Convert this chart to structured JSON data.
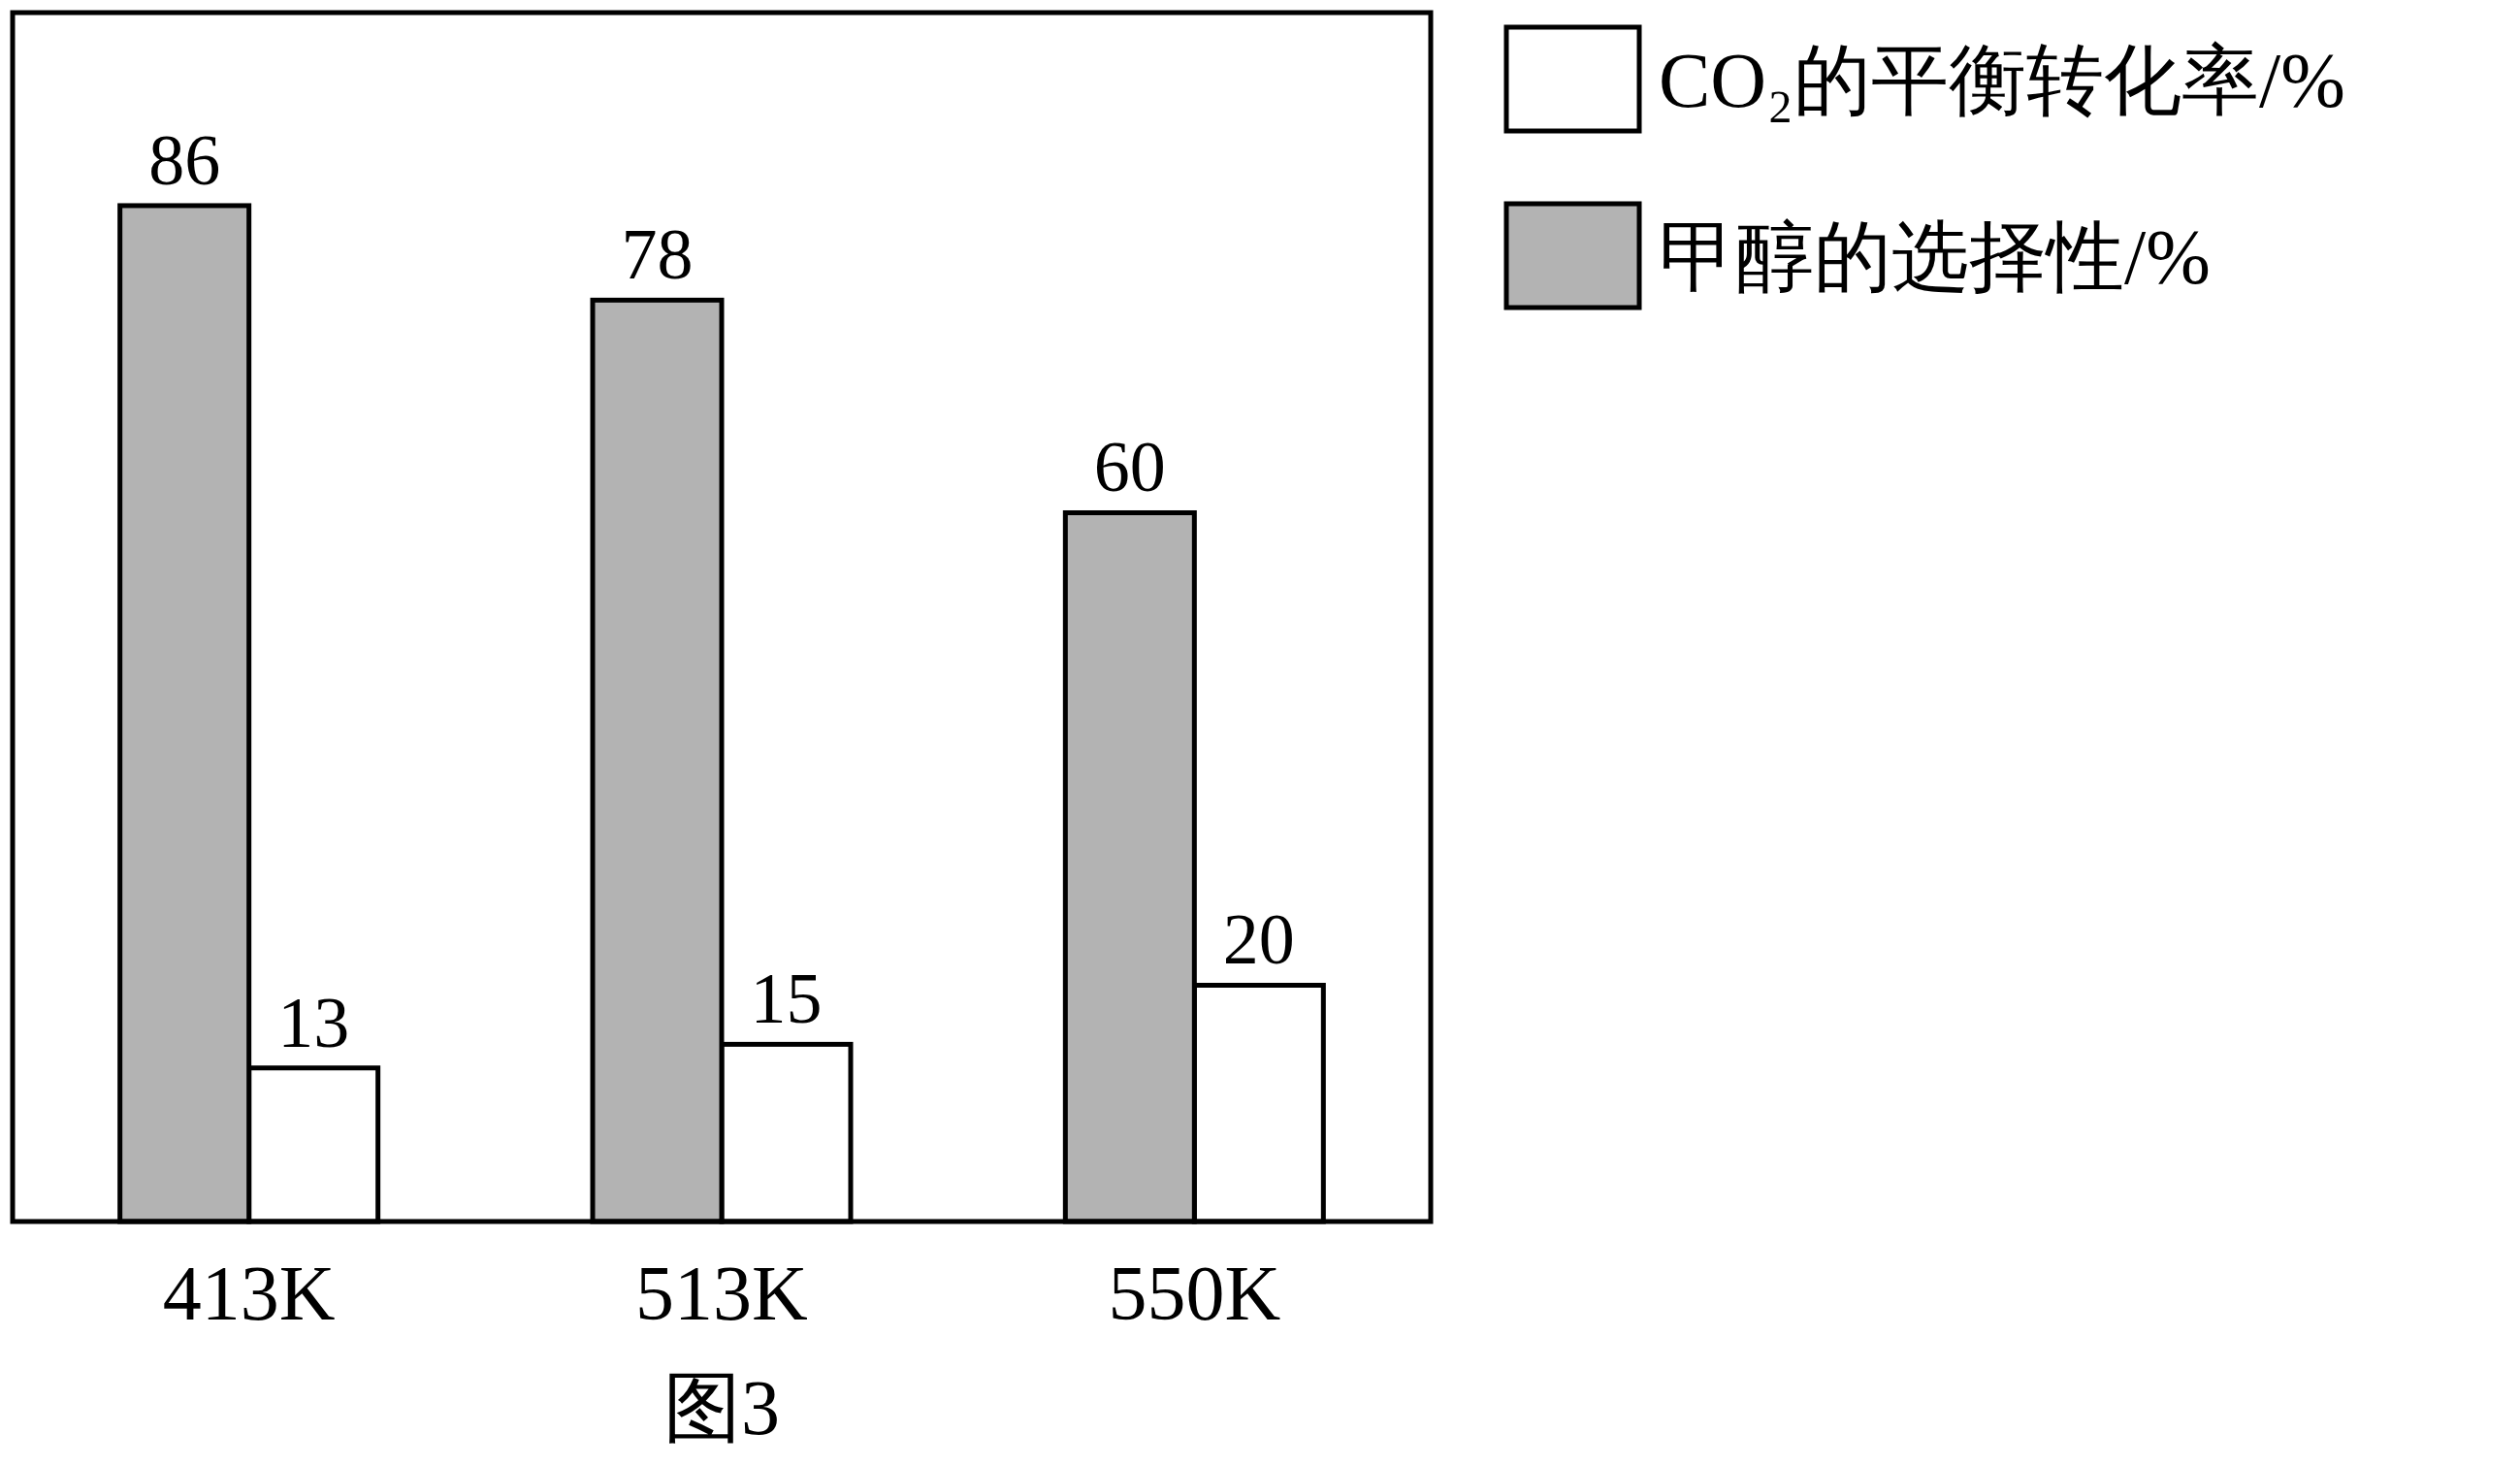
{
  "chart_data": {
    "type": "bar",
    "categories": [
      "413K",
      "513K",
      "550K"
    ],
    "series": [
      {
        "name": "CO₂的平衡转化率/%",
        "color": "#ffffff",
        "values": [
          13,
          15,
          20
        ]
      },
      {
        "name": "甲醇的选择性/%",
        "color": "#b3b3b3",
        "values": [
          86,
          78,
          60
        ]
      }
    ],
    "data_labels": true,
    "legend": "right",
    "annotations": [
      "图3"
    ]
  }
}
